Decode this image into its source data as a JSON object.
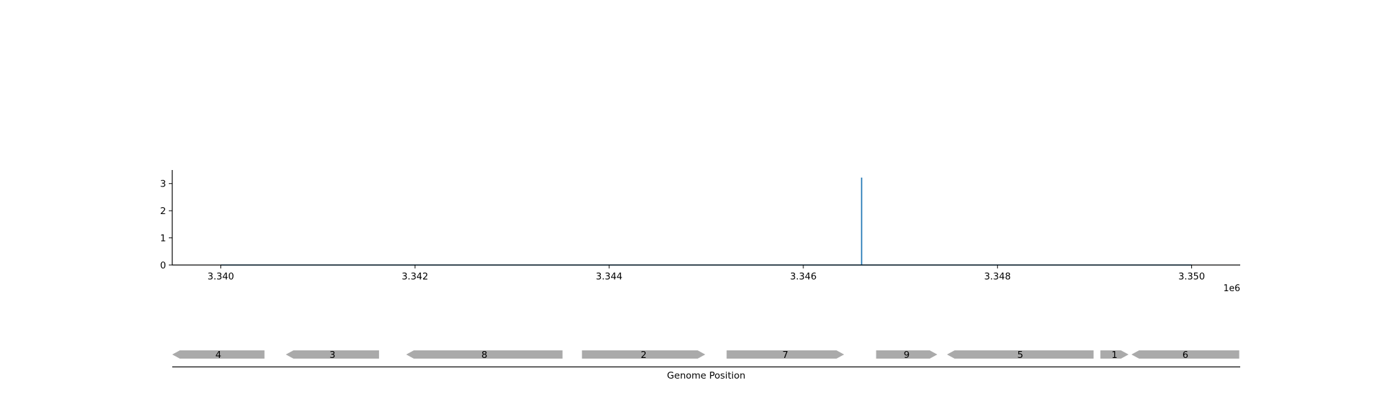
{
  "chart_data": [
    {
      "type": "line",
      "x_tick_labels": [
        "3.340",
        "3.342",
        "3.344",
        "3.346",
        "3.348",
        "3.350"
      ],
      "x_ticks": [
        3340000,
        3342000,
        3344000,
        3346000,
        3348000,
        3350000
      ],
      "x_offset_label": "1e6",
      "y_tick_labels": [
        "0",
        "1",
        "2",
        "3"
      ],
      "y_ticks": [
        0,
        1,
        2,
        3
      ],
      "xlim": [
        3339500,
        3350500
      ],
      "ylim": [
        0,
        3.5
      ],
      "grid": false,
      "series": [
        {
          "color": "#1f77b4",
          "x": [
            3340000,
            3346600,
            3346600,
            3346601,
            3346601,
            3350000
          ],
          "y": [
            0,
            0,
            3.2,
            3.2,
            0,
            0
          ]
        }
      ]
    },
    {
      "type": "gene-track",
      "xlabel": "Genome Position",
      "xlim": [
        3339500,
        3350500
      ],
      "genes": [
        {
          "label": "4",
          "start": 3339500,
          "end": 3340450,
          "strand": "-"
        },
        {
          "label": "3",
          "start": 3340670,
          "end": 3341630,
          "strand": "-"
        },
        {
          "label": "8",
          "start": 3341910,
          "end": 3343520,
          "strand": "-"
        },
        {
          "label": "2",
          "start": 3343720,
          "end": 3344990,
          "strand": "+"
        },
        {
          "label": "7",
          "start": 3345210,
          "end": 3346420,
          "strand": "+"
        },
        {
          "label": "9",
          "start": 3346750,
          "end": 3347380,
          "strand": "+"
        },
        {
          "label": "5",
          "start": 3347480,
          "end": 3348990,
          "strand": "-"
        },
        {
          "label": "1",
          "start": 3349060,
          "end": 3349350,
          "strand": "+"
        },
        {
          "label": "6",
          "start": 3349380,
          "end": 3350490,
          "strand": "-"
        }
      ],
      "gene_color": "#aaaaaa"
    }
  ]
}
